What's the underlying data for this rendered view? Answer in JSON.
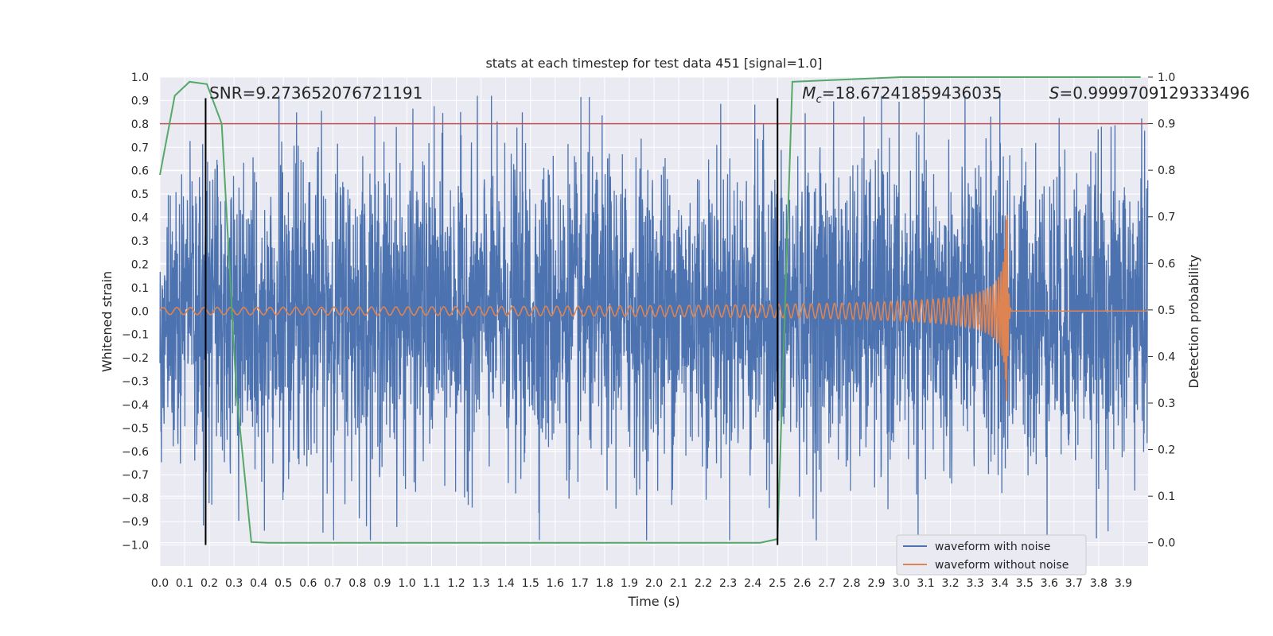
{
  "chart_data": {
    "type": "line",
    "title": "stats at each timestep for test data 451 [signal=1.0]",
    "xlabel": "Time (s)",
    "ylabel": "Whitened strain",
    "ylabel_right": "Detection probability",
    "xlim": [
      0.0,
      4.0
    ],
    "ylim": [
      -1.09,
      1.0
    ],
    "ylim_right": [
      -0.05,
      1.0
    ],
    "xticks": [
      "0.0",
      "0.1",
      "0.2",
      "0.3",
      "0.4",
      "0.5",
      "0.6",
      "0.7",
      "0.8",
      "0.9",
      "1.0",
      "1.1",
      "1.2",
      "1.3",
      "1.4",
      "1.5",
      "1.6",
      "1.7",
      "1.8",
      "1.9",
      "2.0",
      "2.1",
      "2.2",
      "2.3",
      "2.4",
      "2.5",
      "2.6",
      "2.7",
      "2.8",
      "2.9",
      "3.0",
      "3.1",
      "3.2",
      "3.3",
      "3.4",
      "3.5",
      "3.6",
      "3.7",
      "3.8",
      "3.9"
    ],
    "yticks_left": [
      "1.0",
      "0.9",
      "0.8",
      "0.7",
      "0.6",
      "0.5",
      "0.4",
      "0.3",
      "0.2",
      "0.1",
      "0.0",
      "−0.1",
      "−0.2",
      "−0.3",
      "−0.4",
      "−0.5",
      "−0.6",
      "−0.7",
      "−0.8",
      "−0.9",
      "−1.0"
    ],
    "yticks_right": [
      "1.0",
      "0.9",
      "0.8",
      "0.7",
      "0.6",
      "0.5",
      "0.4",
      "0.3",
      "0.2",
      "0.1",
      "0.0"
    ],
    "annotations": {
      "snr": "SNR=9.273652076721191",
      "mc": "=18.67241859436035",
      "mc_symbol": "M",
      "mc_sub": "c",
      "s": "=0.9999709129333496",
      "s_symbol": "S"
    },
    "series": [
      {
        "name": "waveform with noise",
        "color": "#4c72b0",
        "amplitude_std": 0.32,
        "clip": [
          -0.98,
          0.92
        ],
        "spike_max": 0.92,
        "spike_time": 3.4
      },
      {
        "name": "waveform without noise",
        "color": "#dd8452",
        "chirp_start_freq": 18,
        "chirp_merger_time": 3.43,
        "amp_start": 0.015,
        "amp_peak": 0.42
      },
      {
        "name": "detection probability",
        "color": "#55a868",
        "axis": "right",
        "x": [
          0.0,
          0.06,
          0.12,
          0.19,
          0.25,
          0.31,
          0.37,
          0.44,
          1.0,
          2.0,
          2.43,
          2.5,
          2.56,
          3.0,
          3.5,
          3.97
        ],
        "y": [
          0.79,
          0.96,
          0.99,
          0.985,
          0.9,
          0.32,
          0.0015,
          0.0,
          0.0,
          0.0,
          0.0,
          0.008,
          0.99,
          1.0,
          1.0,
          1.0
        ]
      }
    ],
    "vertical_markers": [
      0.185,
      2.5
    ],
    "threshold_right": 0.9,
    "threshold_color": "#c44e52",
    "legend": {
      "position": "lower-right",
      "entries": [
        "waveform with noise",
        "waveform without noise"
      ]
    },
    "grid": true,
    "background": "#eaeaf2"
  }
}
